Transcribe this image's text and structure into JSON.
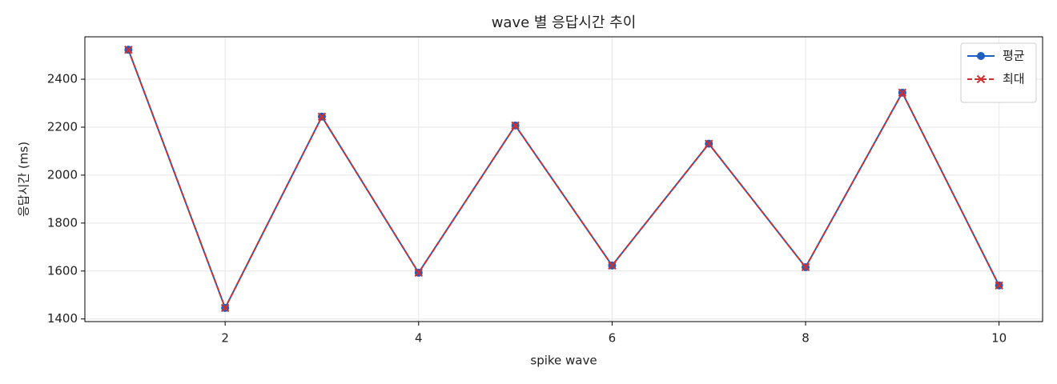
{
  "chart_data": {
    "type": "line",
    "title": "wave 별 응답시간 추이",
    "x_label": "spike wave",
    "y_label": "응답시간 (ms)",
    "x": [
      1,
      2,
      3,
      4,
      5,
      6,
      7,
      8,
      9,
      10
    ],
    "series": [
      {
        "name": "평균",
        "color": "#1f5fbf",
        "marker": "o",
        "dash": false,
        "values": [
          2523,
          1446,
          2244,
          1593,
          2207,
          1623,
          2131,
          1616,
          2344,
          1540
        ]
      },
      {
        "name": "최대",
        "color": "#d03030",
        "marker": "x",
        "dash": true,
        "values": [
          2523,
          1446,
          2244,
          1593,
          2207,
          1623,
          2131,
          1616,
          2344,
          1540
        ]
      }
    ],
    "xlim": [
      0.55,
      10.45
    ],
    "ylim": [
      1389,
      2577
    ],
    "xticks": [
      2,
      4,
      6,
      8,
      10
    ],
    "yticks": [
      1400,
      1600,
      1800,
      2000,
      2200,
      2400
    ],
    "grid": true,
    "legend": "upper right"
  }
}
